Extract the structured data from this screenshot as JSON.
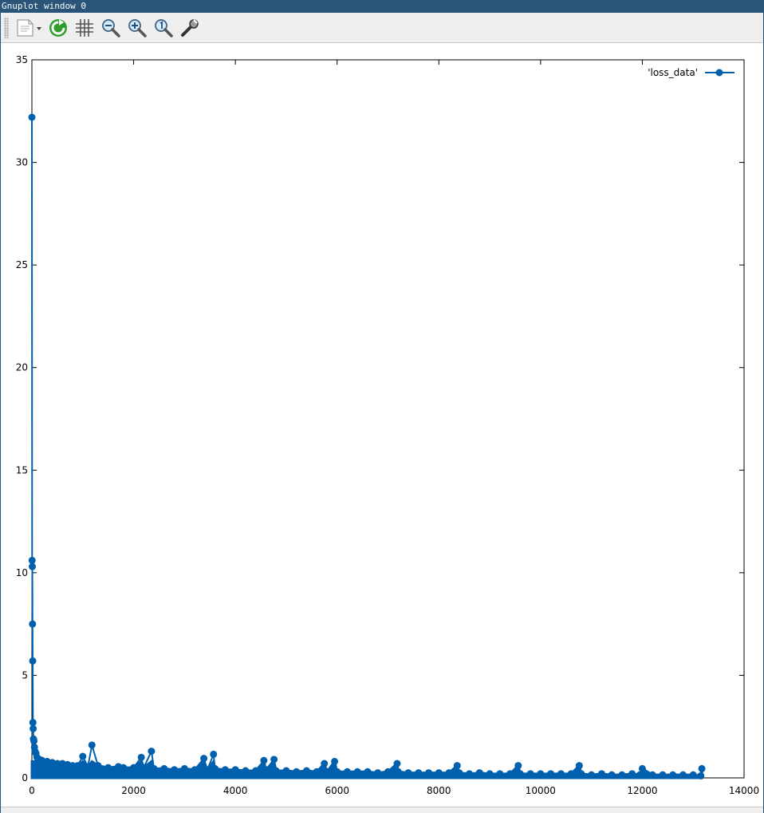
{
  "window": {
    "title": "Gnuplot window 0"
  },
  "toolbar": {
    "items": [
      {
        "name": "export-menu-icon"
      },
      {
        "name": "replot-icon"
      },
      {
        "name": "grid-icon"
      },
      {
        "name": "zoom-out-icon"
      },
      {
        "name": "zoom-in-icon"
      },
      {
        "name": "zoom-reset-icon"
      },
      {
        "name": "settings-wrench-icon"
      }
    ]
  },
  "colors": {
    "titlebar": "#2a5478",
    "series": "#0060ad",
    "axis": "#000000",
    "toolbar_bg": "#efefef"
  },
  "chart_data": {
    "type": "line",
    "marker": "circle",
    "title": "",
    "xlabel": "",
    "ylabel": "",
    "xlim": [
      0,
      14000
    ],
    "ylim": [
      0,
      35
    ],
    "xticks": [
      "0",
      "2000",
      "4000",
      "6000",
      "8000",
      "10000",
      "12000",
      "14000"
    ],
    "yticks": [
      "0",
      "5",
      "10",
      "15",
      "20",
      "25",
      "30",
      "35"
    ],
    "grid": false,
    "legend": {
      "position": "top-right",
      "entries": [
        "'loss_data'"
      ]
    },
    "series": [
      {
        "name": "'loss_data'",
        "x": [
          0,
          4,
          8,
          12,
          16,
          20,
          25,
          30,
          40,
          50,
          60,
          80,
          100,
          150,
          200,
          300,
          400,
          500,
          600,
          700,
          800,
          900,
          1000,
          1100,
          1180,
          1300,
          1500,
          1700,
          1800,
          2000,
          2150,
          2200,
          2350,
          2400,
          2600,
          2800,
          3000,
          3200,
          3380,
          3450,
          3570,
          3600,
          3800,
          4000,
          4200,
          4400,
          4560,
          4600,
          4760,
          4800,
          5000,
          5200,
          5400,
          5600,
          5750,
          5800,
          5950,
          6000,
          6200,
          6400,
          6600,
          6800,
          7000,
          7180,
          7200,
          7400,
          7600,
          7800,
          8000,
          8200,
          8360,
          8400,
          8600,
          8800,
          9000,
          9200,
          9400,
          9560,
          9600,
          9800,
          10000,
          10200,
          10400,
          10600,
          10760,
          10800,
          11000,
          11200,
          11400,
          11600,
          11800,
          11950,
          12000,
          12200,
          12400,
          12600,
          12800,
          13000,
          13150,
          13170
        ],
        "y": [
          32.2,
          10.6,
          10.3,
          7.5,
          5.7,
          2.7,
          2.4,
          1.9,
          1.8,
          1.5,
          1.3,
          1.2,
          1.0,
          0.9,
          0.85,
          0.8,
          0.75,
          0.7,
          0.7,
          0.65,
          0.6,
          0.6,
          1.05,
          0.55,
          1.6,
          0.6,
          0.5,
          0.55,
          0.5,
          0.5,
          1.0,
          0.5,
          1.3,
          0.45,
          0.45,
          0.4,
          0.45,
          0.4,
          0.95,
          0.4,
          1.15,
          0.45,
          0.4,
          0.4,
          0.35,
          0.35,
          0.85,
          0.4,
          0.9,
          0.35,
          0.35,
          0.3,
          0.35,
          0.3,
          0.7,
          0.3,
          0.8,
          0.3,
          0.3,
          0.3,
          0.3,
          0.25,
          0.3,
          0.7,
          0.3,
          0.25,
          0.25,
          0.25,
          0.25,
          0.25,
          0.6,
          0.25,
          0.2,
          0.25,
          0.2,
          0.2,
          0.2,
          0.6,
          0.2,
          0.2,
          0.2,
          0.2,
          0.2,
          0.2,
          0.6,
          0.2,
          0.15,
          0.2,
          0.15,
          0.15,
          0.2,
          0.15,
          0.45,
          0.15,
          0.15,
          0.15,
          0.15,
          0.15,
          0.1,
          0.45
        ]
      }
    ]
  }
}
